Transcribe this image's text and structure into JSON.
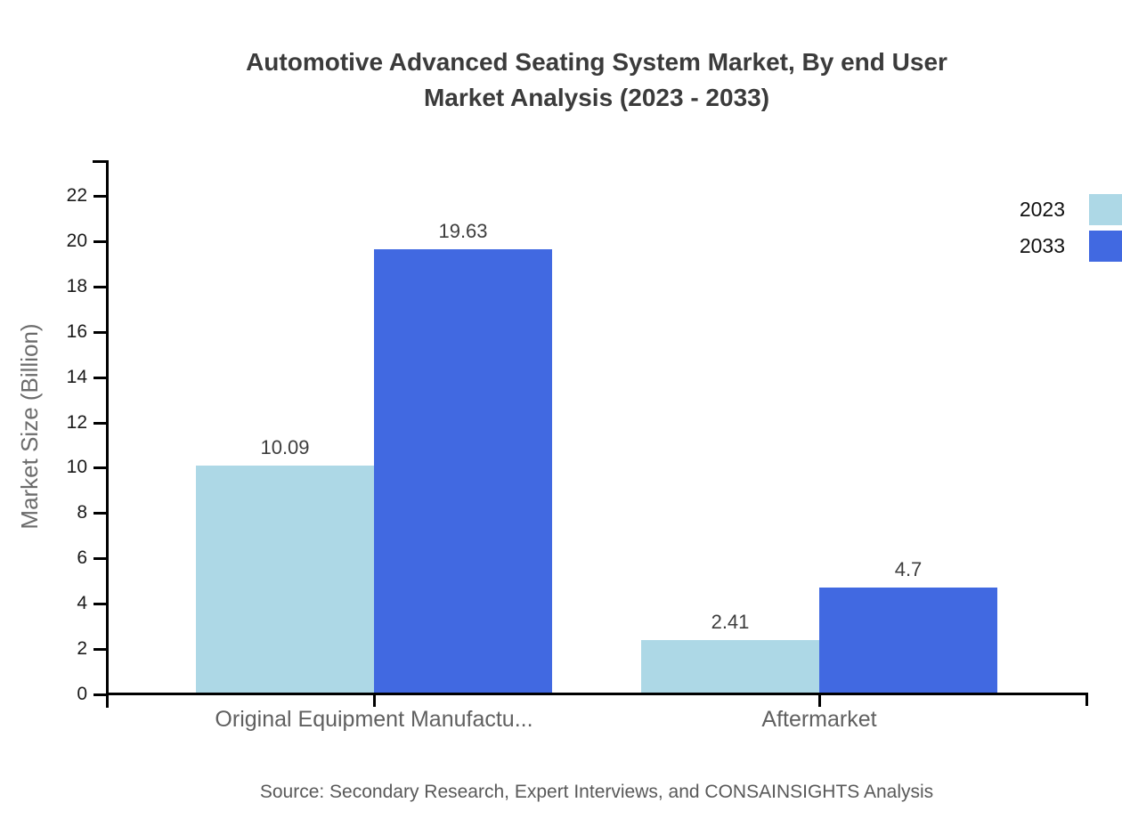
{
  "chart_data": {
    "type": "bar",
    "title_line1": "Automotive Advanced Seating System Market, By end User",
    "title_line2": "Market Analysis (2023 - 2033)",
    "ylabel": "Market Size (Billion)",
    "xlabel": "",
    "categories": [
      "Original Equipment Manufactu...",
      "Aftermarket"
    ],
    "series": [
      {
        "name": "2023",
        "color": "#ADD8E6",
        "values": [
          10.09,
          2.41
        ]
      },
      {
        "name": "2033",
        "color": "#4169E1",
        "values": [
          19.63,
          4.7
        ]
      }
    ],
    "value_labels": [
      [
        "10.09",
        "2.41"
      ],
      [
        "19.63",
        "4.7"
      ]
    ],
    "ylim": [
      0,
      22
    ],
    "yticks": [
      0,
      2,
      4,
      6,
      8,
      10,
      12,
      14,
      16,
      18,
      20,
      22
    ],
    "grid": false,
    "legend_position": "top-right",
    "source": "Source: Secondary Research, Expert Interviews, and CONSAINSIGHTS Analysis"
  }
}
